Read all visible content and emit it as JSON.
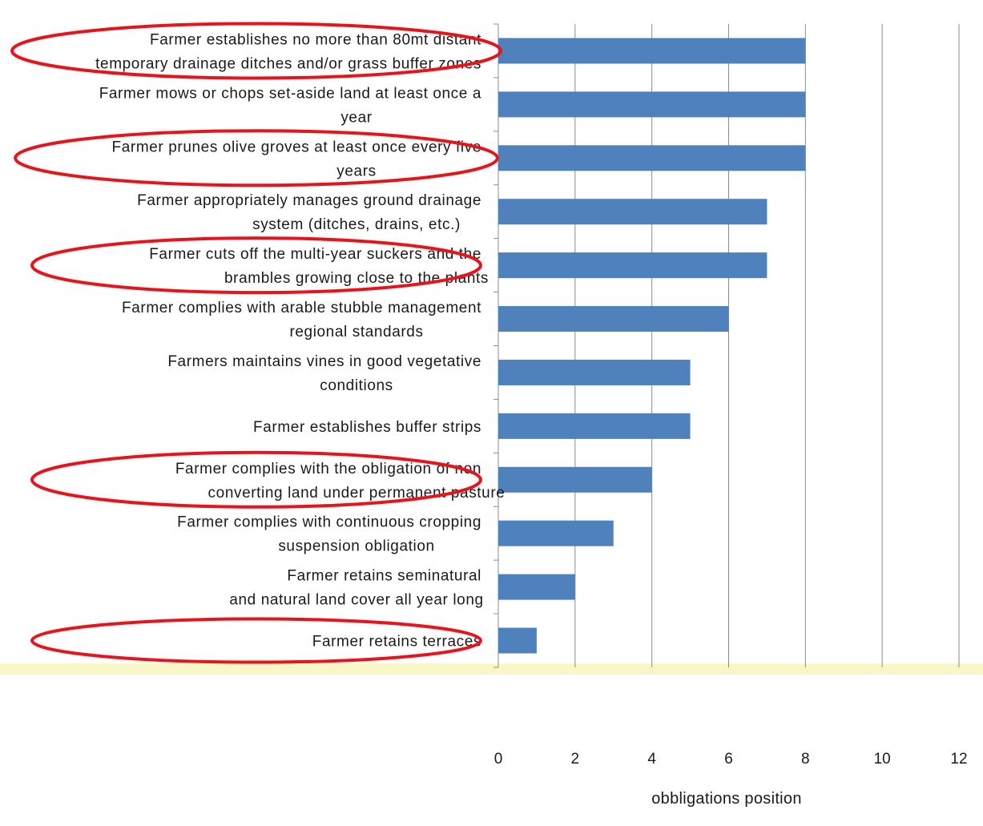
{
  "chart_data": {
    "type": "bar",
    "orientation": "horizontal",
    "title": "",
    "xlabel": "obbligations position",
    "ylabel": "",
    "xlim": [
      0,
      12
    ],
    "xticks": [
      0,
      2,
      4,
      6,
      8,
      10,
      12
    ],
    "grid": true,
    "legend": "none",
    "bar_color": "#4f81bd",
    "highlight_color": "#e8141c",
    "categories": [
      {
        "lines": [
          "Farmer establishes no more than 80mt distant",
          "temporary drainage ditches and/or grass buffer zones"
        ],
        "value": 8,
        "highlighted": true
      },
      {
        "lines": [
          "Farmer mows or chops set-aside land at least once a",
          "year"
        ],
        "value": 8,
        "highlighted": false
      },
      {
        "lines": [
          "Farmer prunes olive groves at least once every five",
          "years"
        ],
        "value": 8,
        "highlighted": true
      },
      {
        "lines": [
          "Farmer appropriately manages ground drainage",
          "system (ditches, drains, etc.)"
        ],
        "value": 7,
        "highlighted": false
      },
      {
        "lines": [
          "Farmer cuts off the multi-year suckers and the",
          "brambles growing close to the plants"
        ],
        "value": 7,
        "highlighted": true
      },
      {
        "lines": [
          "Farmer complies with arable stubble management",
          "regional standards"
        ],
        "value": 6,
        "highlighted": false
      },
      {
        "lines": [
          "Farmers maintains vines in good vegetative",
          "conditions"
        ],
        "value": 5,
        "highlighted": false
      },
      {
        "lines": [
          "Farmer establishes buffer strips"
        ],
        "value": 5,
        "highlighted": false
      },
      {
        "lines": [
          "Farmer complies with the obligation of non",
          "converting land under permanent pasture"
        ],
        "value": 4,
        "highlighted": true
      },
      {
        "lines": [
          "Farmer complies with continuous cropping",
          "suspension obligation"
        ],
        "value": 3,
        "highlighted": false
      },
      {
        "lines": [
          "Farmer retains seminatural",
          "and natural land cover all year long"
        ],
        "value": 2,
        "highlighted": false
      },
      {
        "lines": [
          "Farmer retains terraces"
        ],
        "value": 1,
        "highlighted": true
      }
    ]
  }
}
